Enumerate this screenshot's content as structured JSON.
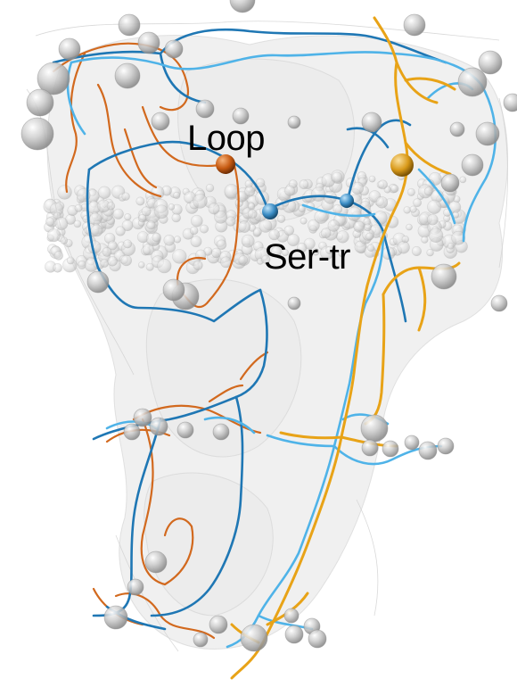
{
  "labels": {
    "loop": "Loop",
    "ser_tr": "Ser-tr"
  },
  "colors": {
    "orange_path": "#d2691e",
    "dark_blue_path": "#1f77b4",
    "light_blue_path": "#4fb3e8",
    "gold_path": "#e8a317",
    "sphere_grey": "#c8c8c8",
    "surface_grey": "#e6e6e6"
  },
  "markers": [
    {
      "name": "loop-marker",
      "color": "#c65a12"
    },
    {
      "name": "gold-marker",
      "color": "#d99a1a"
    },
    {
      "name": "ser-tr-marker-left",
      "color": "#3a8cc4"
    },
    {
      "name": "ser-tr-marker-right",
      "color": "#1f6fa3"
    }
  ]
}
